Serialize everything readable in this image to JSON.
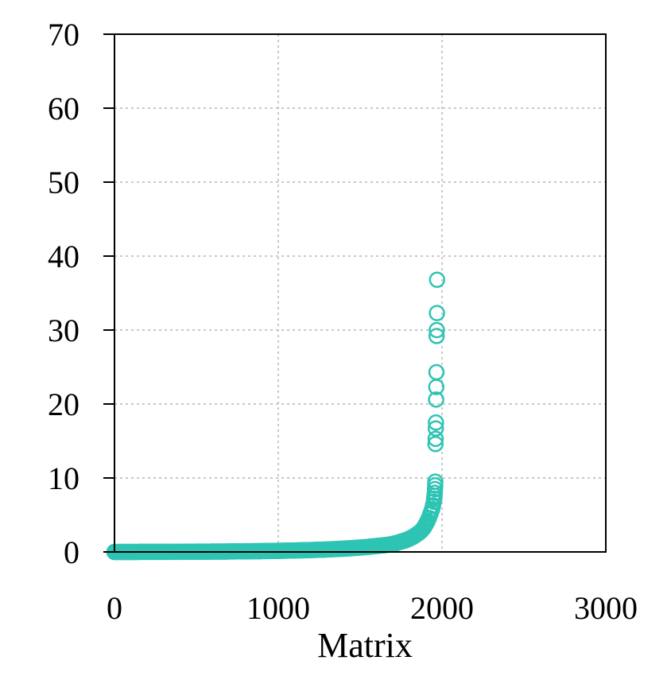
{
  "chart_data": {
    "type": "scatter",
    "title": "",
    "xlabel": "Matrix",
    "ylabel": "",
    "xlim": [
      0,
      3000
    ],
    "ylim": [
      0,
      70
    ],
    "x_ticks": [
      "0",
      "1000",
      "2000",
      "3000"
    ],
    "y_ticks": [
      "0",
      "10",
      "20",
      "30",
      "40",
      "50",
      "60",
      "70"
    ],
    "grid": true,
    "legend": "none",
    "marker": "open-circle",
    "color": "#2ec4b3",
    "series": [
      {
        "points": [
          [
            0,
            0.0
          ],
          [
            40,
            0.0
          ],
          [
            80,
            0.0
          ],
          [
            120,
            0.0
          ],
          [
            160,
            0.01
          ],
          [
            200,
            0.01
          ],
          [
            240,
            0.01
          ],
          [
            280,
            0.01
          ],
          [
            320,
            0.02
          ],
          [
            360,
            0.02
          ],
          [
            400,
            0.02
          ],
          [
            440,
            0.03
          ],
          [
            480,
            0.03
          ],
          [
            520,
            0.04
          ],
          [
            560,
            0.04
          ],
          [
            600,
            0.05
          ],
          [
            640,
            0.05
          ],
          [
            680,
            0.06
          ],
          [
            720,
            0.07
          ],
          [
            760,
            0.08
          ],
          [
            800,
            0.09
          ],
          [
            840,
            0.1
          ],
          [
            880,
            0.11
          ],
          [
            920,
            0.12
          ],
          [
            960,
            0.14
          ],
          [
            1000,
            0.15
          ],
          [
            1040,
            0.17
          ],
          [
            1080,
            0.19
          ],
          [
            1120,
            0.21
          ],
          [
            1160,
            0.23
          ],
          [
            1200,
            0.26
          ],
          [
            1240,
            0.29
          ],
          [
            1280,
            0.32
          ],
          [
            1320,
            0.36
          ],
          [
            1360,
            0.4
          ],
          [
            1400,
            0.45
          ],
          [
            1440,
            0.5
          ],
          [
            1480,
            0.56
          ],
          [
            1520,
            0.63
          ],
          [
            1560,
            0.71
          ],
          [
            1600,
            0.8
          ],
          [
            1640,
            0.9
          ],
          [
            1680,
            1.0
          ],
          [
            1720,
            1.2
          ],
          [
            1750,
            1.4
          ],
          [
            1780,
            1.6
          ],
          [
            1800,
            1.8
          ],
          [
            1820,
            2.0
          ],
          [
            1840,
            2.3
          ],
          [
            1860,
            2.6
          ],
          [
            1875,
            2.9
          ],
          [
            1890,
            3.3
          ],
          [
            1900,
            3.7
          ],
          [
            1910,
            4.1
          ],
          [
            1920,
            4.6
          ],
          [
            1930,
            5.2
          ],
          [
            1940,
            5.8
          ],
          [
            1945,
            6.3
          ],
          [
            1950,
            6.8
          ],
          [
            1952,
            7.2
          ],
          [
            1954,
            7.6
          ],
          [
            1956,
            8.0
          ],
          [
            1957,
            8.5
          ],
          [
            1958,
            9.0
          ],
          [
            1959,
            9.5
          ],
          [
            1960,
            14.6
          ],
          [
            1961,
            15.3
          ],
          [
            1962,
            16.7
          ],
          [
            1963,
            17.5
          ],
          [
            1964,
            20.6
          ],
          [
            1965,
            22.3
          ],
          [
            1966,
            24.3
          ],
          [
            1967,
            29.2
          ],
          [
            1968,
            30.0
          ],
          [
            1969,
            32.3
          ],
          [
            1970,
            36.8
          ]
        ]
      }
    ]
  }
}
